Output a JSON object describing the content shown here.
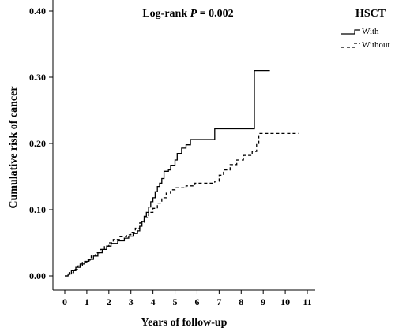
{
  "chart_data": {
    "type": "line",
    "step": true,
    "xlabel": "Years of follow-up",
    "ylabel": "Cumulative risk of cancer",
    "xlim": [
      -0.2,
      11.3
    ],
    "ylim": [
      -0.02,
      0.42
    ],
    "x_ticks": [
      0,
      1,
      2,
      3,
      4,
      5,
      6,
      7,
      8,
      9,
      10,
      11
    ],
    "x_tick_labels": [
      "0",
      "1",
      "2",
      "3",
      "4",
      "5",
      "6",
      "7",
      "8",
      "9",
      "10",
      "11"
    ],
    "y_ticks": [
      0,
      0.1,
      0.2,
      0.3,
      0.4
    ],
    "y_tick_labels": [
      "0.00",
      "0.10",
      "0.20",
      "0.30",
      "0.40"
    ],
    "grid": false,
    "annotation": {
      "prefix": "Log-rank ",
      "italic": "P",
      "suffix": " = 0.002"
    },
    "legend": {
      "title": "HSCT",
      "placement": "top-right"
    },
    "series": [
      {
        "name": "With",
        "style": "solid",
        "color": "#000000",
        "points": [
          [
            0,
            0.0
          ],
          [
            0.15,
            0.003
          ],
          [
            0.3,
            0.008
          ],
          [
            0.5,
            0.013
          ],
          [
            0.7,
            0.018
          ],
          [
            0.9,
            0.022
          ],
          [
            1.1,
            0.025
          ],
          [
            1.3,
            0.03
          ],
          [
            1.5,
            0.035
          ],
          [
            1.7,
            0.04
          ],
          [
            1.9,
            0.045
          ],
          [
            2.1,
            0.049
          ],
          [
            2.4,
            0.053
          ],
          [
            2.7,
            0.057
          ],
          [
            2.9,
            0.06
          ],
          [
            3.1,
            0.064
          ],
          [
            3.3,
            0.068
          ],
          [
            3.4,
            0.075
          ],
          [
            3.5,
            0.082
          ],
          [
            3.6,
            0.09
          ],
          [
            3.7,
            0.096
          ],
          [
            3.8,
            0.104
          ],
          [
            3.9,
            0.112
          ],
          [
            4.0,
            0.118
          ],
          [
            4.1,
            0.127
          ],
          [
            4.2,
            0.135
          ],
          [
            4.3,
            0.14
          ],
          [
            4.4,
            0.147
          ],
          [
            4.5,
            0.158
          ],
          [
            4.7,
            0.16
          ],
          [
            4.8,
            0.167
          ],
          [
            5.0,
            0.175
          ],
          [
            5.1,
            0.185
          ],
          [
            5.3,
            0.193
          ],
          [
            5.5,
            0.198
          ],
          [
            5.7,
            0.206
          ],
          [
            6.8,
            0.222
          ],
          [
            8.6,
            0.31
          ],
          [
            9.3,
            0.31
          ]
        ]
      },
      {
        "name": "Without",
        "style": "dashed",
        "color": "#000000",
        "points": [
          [
            0,
            0.0
          ],
          [
            0.2,
            0.005
          ],
          [
            0.4,
            0.01
          ],
          [
            0.6,
            0.015
          ],
          [
            0.8,
            0.02
          ],
          [
            1.0,
            0.024
          ],
          [
            1.2,
            0.03
          ],
          [
            1.4,
            0.035
          ],
          [
            1.6,
            0.04
          ],
          [
            1.8,
            0.045
          ],
          [
            2.0,
            0.05
          ],
          [
            2.2,
            0.055
          ],
          [
            2.5,
            0.059
          ],
          [
            2.8,
            0.062
          ],
          [
            3.0,
            0.066
          ],
          [
            3.2,
            0.072
          ],
          [
            3.4,
            0.08
          ],
          [
            3.6,
            0.088
          ],
          [
            3.8,
            0.096
          ],
          [
            4.0,
            0.102
          ],
          [
            4.2,
            0.11
          ],
          [
            4.4,
            0.118
          ],
          [
            4.6,
            0.125
          ],
          [
            4.8,
            0.13
          ],
          [
            5.0,
            0.133
          ],
          [
            5.5,
            0.136
          ],
          [
            5.9,
            0.14
          ],
          [
            6.8,
            0.143
          ],
          [
            7.0,
            0.152
          ],
          [
            7.2,
            0.16
          ],
          [
            7.5,
            0.168
          ],
          [
            7.8,
            0.175
          ],
          [
            8.1,
            0.182
          ],
          [
            8.5,
            0.188
          ],
          [
            8.7,
            0.2
          ],
          [
            8.8,
            0.215
          ],
          [
            10.6,
            0.215
          ]
        ]
      }
    ]
  }
}
